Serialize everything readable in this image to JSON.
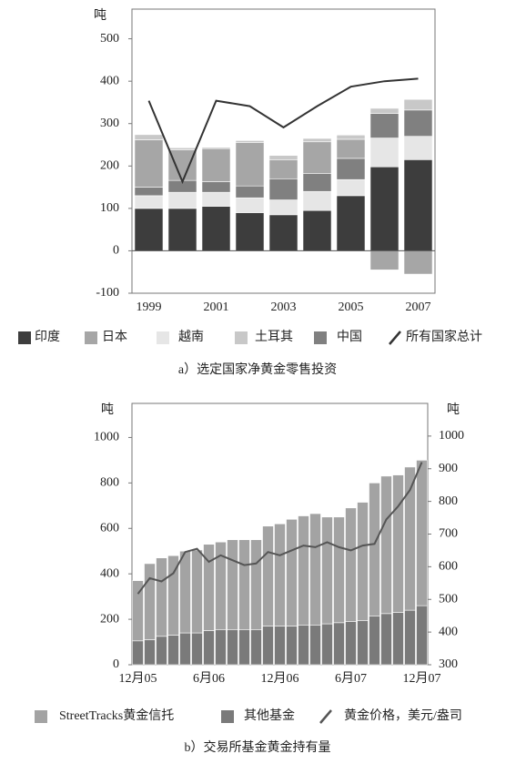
{
  "chart_data": [
    {
      "type": "bar",
      "title": "a）选定国家净黄金零售投资",
      "y_label": "吨",
      "categories": [
        "1999",
        null,
        "2001",
        null,
        "2003",
        null,
        "2005",
        null,
        "2007"
      ],
      "ylim": [
        -100,
        570
      ],
      "yticks": [
        -100,
        0,
        100,
        200,
        300,
        400,
        500
      ],
      "series": [
        {
          "name": "印度",
          "color": "#3d3d3d",
          "values": [
            100,
            100,
            105,
            90,
            85,
            95,
            130,
            198,
            215
          ]
        },
        {
          "name": "日本",
          "color": "#a6a6a6",
          "values": [
            112,
            72,
            78,
            102,
            45,
            75,
            45,
            -45,
            -55
          ]
        },
        {
          "name": "越南",
          "color": "#e6e6e6",
          "values": [
            30,
            38,
            33,
            35,
            35,
            45,
            38,
            68,
            55
          ]
        },
        {
          "name": "土耳其",
          "color": "#c8c8c8",
          "values": [
            12,
            5,
            3,
            5,
            10,
            8,
            10,
            12,
            25
          ]
        },
        {
          "name": "中国",
          "color": "#808080",
          "values": [
            20,
            28,
            25,
            28,
            50,
            42,
            50,
            58,
            62
          ]
        },
        {
          "name": "所有国家总计",
          "type": "line",
          "color": "#333333",
          "values": [
            354,
            163,
            354,
            341,
            291,
            341,
            387,
            400,
            406
          ]
        }
      ]
    },
    {
      "type": "bar",
      "title": "b）交易所基金黄金持有量",
      "y_label": "吨",
      "y2_label": "吨",
      "categories": [
        "12月05",
        null,
        null,
        null,
        null,
        null,
        "6月06",
        null,
        null,
        null,
        null,
        null,
        "12月06",
        null,
        null,
        null,
        null,
        null,
        "6月07",
        null,
        null,
        null,
        null,
        null,
        "12月07"
      ],
      "ylim": [
        0,
        1150
      ],
      "yticks": [
        0,
        200,
        400,
        600,
        800,
        1000
      ],
      "y2lim": [
        300,
        1100
      ],
      "y2ticks": [
        300,
        400,
        500,
        600,
        700,
        800,
        900,
        1000
      ],
      "series": [
        {
          "name": "StreetTracks黄金信托",
          "color": "#a3a3a3",
          "values": [
            265,
            335,
            345,
            350,
            360,
            365,
            380,
            385,
            395,
            395,
            395,
            440,
            450,
            470,
            480,
            490,
            470,
            465,
            500,
            520,
            585,
            605,
            605,
            630,
            640
          ]
        },
        {
          "name": "其他基金",
          "color": "#7a7a7a",
          "values": [
            105,
            110,
            125,
            130,
            140,
            140,
            150,
            155,
            155,
            155,
            155,
            170,
            170,
            170,
            175,
            175,
            180,
            185,
            190,
            195,
            215,
            225,
            230,
            240,
            260
          ]
        },
        {
          "name": "黄金价格，美元/盎司",
          "type": "line",
          "axis": "y2",
          "color": "#555555",
          "values": [
            517,
            565,
            555,
            580,
            645,
            655,
            615,
            635,
            620,
            605,
            610,
            645,
            635,
            650,
            665,
            660,
            675,
            660,
            650,
            665,
            670,
            745,
            785,
            835,
            920
          ]
        }
      ]
    }
  ]
}
